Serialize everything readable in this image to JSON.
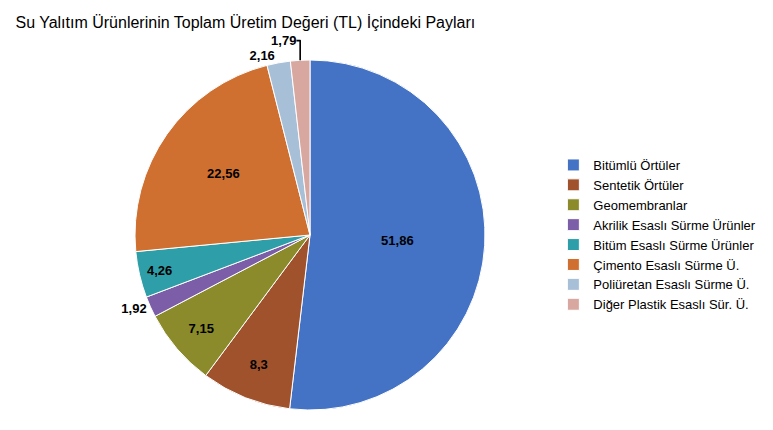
{
  "chart_data": {
    "type": "pie",
    "title": "Su Yalıtım Ürünlerinin Toplam Üretim Değeri (TL) İçindeki Payları",
    "categories": [
      "Bitümlü Örtüler",
      "Sentetik Örtüler",
      "Geomembranlar",
      "Akrilik Esaslı Sürme Ürünler",
      "Bitüm Esaslı Sürme Ürünler",
      "Çimento Esaslı Sürme Ü.",
      "Poliüretan Esaslı Sürme Ü.",
      "Diğer Plastik Esaslı Sür. Ü."
    ],
    "values": [
      51.86,
      8.3,
      7.15,
      1.92,
      4.26,
      22.56,
      2.16,
      1.79
    ],
    "value_labels": [
      "51,86",
      "8,3",
      "7,15",
      "1,92",
      "4,26",
      "22,56",
      "2,16",
      "1,79"
    ],
    "colors": [
      "#4472C4",
      "#A0522D",
      "#8B8B2B",
      "#7B5EA7",
      "#2E9FA8",
      "#D07030",
      "#A8BFD8",
      "#D8A8A0"
    ],
    "data_labels": true,
    "legend": "right"
  }
}
